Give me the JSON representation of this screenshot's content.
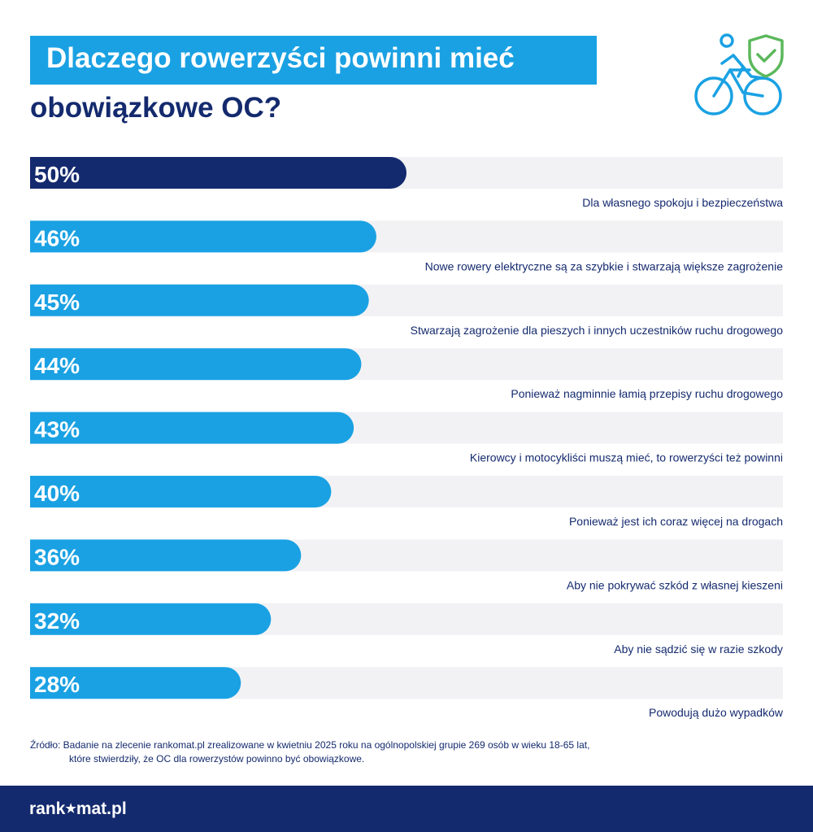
{
  "header": {
    "title_line1": "Dlaczego rowerzyści powinni mieć",
    "title_line2": "obowiązkowe OC?",
    "icon": "cyclist-shield-check-icon"
  },
  "colors": {
    "accent": "#1aa1e3",
    "navy": "#142a6e",
    "track": "#f2f2f4",
    "check": "#5cb85c"
  },
  "chart_data": {
    "type": "bar",
    "orientation": "horizontal",
    "categories": [
      "Dla własnego spokoju i bezpieczeństwa",
      "Nowe rowery elektryczne są za szybkie i stwarzają większe zagrożenie",
      "Stwarzają zagrożenie dla pieszych i innych uczestników ruchu drogowego",
      "Ponieważ nagminnie łamią przepisy ruchu drogowego",
      "Kierowcy i motocykliści muszą mieć, to rowerzyści też powinni",
      "Ponieważ jest ich coraz więcej na drogach",
      "Aby nie pokrywać szkód z własnej kieszeni",
      "Aby nie sądzić się w razie szkody",
      "Powodują dużo wypadków"
    ],
    "values": [
      50,
      46,
      45,
      44,
      43,
      40,
      36,
      32,
      28
    ],
    "value_labels": [
      "50%",
      "46%",
      "45%",
      "44%",
      "43%",
      "40%",
      "36%",
      "32%",
      "28%"
    ],
    "xlim": [
      0,
      100
    ],
    "highlight_index": 0
  },
  "footer": {
    "source_line1": "Źródło: Badanie na zlecenie rankomat.pl zrealizowane w kwietniu 2025 roku na ogólnopolskiej grupie 269 osób w wieku 18-65 lat,",
    "source_line2": "które stwierdziły, że OC dla rowerzystów powinno być obowiązkowe.",
    "logo_part1": "rank",
    "logo_part2": "mat.pl",
    "logo_star": "★"
  }
}
